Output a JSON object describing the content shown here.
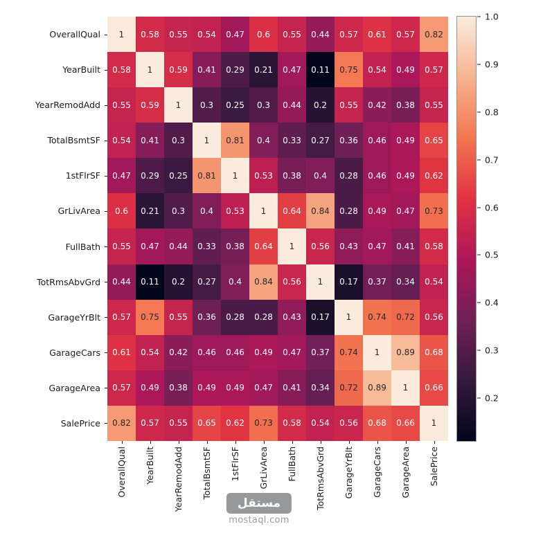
{
  "figure": {
    "background": "#ffffff"
  },
  "chart_data": {
    "type": "heatmap",
    "title": "",
    "xlabel": "",
    "ylabel": "",
    "grid": false,
    "legend_position": "right-colorbar",
    "categories": [
      "OverallQual",
      "YearBuilt",
      "YearRemodAdd",
      "TotalBsmtSF",
      "1stFlrSF",
      "GrLivArea",
      "FullBath",
      "TotRmsAbvGrd",
      "GarageYrBlt",
      "GarageCars",
      "GarageArea",
      "SalePrice"
    ],
    "matrix": [
      [
        "1",
        "0.58",
        "0.55",
        "0.54",
        "0.47",
        "0.6",
        "0.55",
        "0.44",
        "0.57",
        "0.61",
        "0.57",
        "0.82"
      ],
      [
        "0.58",
        "1",
        "0.59",
        "0.41",
        "0.29",
        "0.21",
        "0.47",
        "0.11",
        "0.75",
        "0.54",
        "0.49",
        "0.57"
      ],
      [
        "0.55",
        "0.59",
        "1",
        "0.3",
        "0.25",
        "0.3",
        "0.44",
        "0.2",
        "0.55",
        "0.42",
        "0.38",
        "0.55"
      ],
      [
        "0.54",
        "0.41",
        "0.3",
        "1",
        "0.81",
        "0.4",
        "0.33",
        "0.27",
        "0.36",
        "0.46",
        "0.49",
        "0.65"
      ],
      [
        "0.47",
        "0.29",
        "0.25",
        "0.81",
        "1",
        "0.53",
        "0.38",
        "0.4",
        "0.28",
        "0.46",
        "0.49",
        "0.62"
      ],
      [
        "0.6",
        "0.21",
        "0.3",
        "0.4",
        "0.53",
        "1",
        "0.64",
        "0.84",
        "0.28",
        "0.49",
        "0.47",
        "0.73"
      ],
      [
        "0.55",
        "0.47",
        "0.44",
        "0.33",
        "0.38",
        "0.64",
        "1",
        "0.56",
        "0.43",
        "0.47",
        "0.41",
        "0.58"
      ],
      [
        "0.44",
        "0.11",
        "0.2",
        "0.27",
        "0.4",
        "0.84",
        "0.56",
        "1",
        "0.17",
        "0.37",
        "0.34",
        "0.54"
      ],
      [
        "0.57",
        "0.75",
        "0.55",
        "0.36",
        "0.28",
        "0.28",
        "0.43",
        "0.17",
        "1",
        "0.74",
        "0.72",
        "0.56"
      ],
      [
        "0.61",
        "0.54",
        "0.42",
        "0.46",
        "0.46",
        "0.49",
        "0.47",
        "0.37",
        "0.74",
        "1",
        "0.89",
        "0.68"
      ],
      [
        "0.57",
        "0.49",
        "0.38",
        "0.49",
        "0.49",
        "0.47",
        "0.41",
        "0.34",
        "0.72",
        "0.89",
        "1",
        "0.66"
      ],
      [
        "0.82",
        "0.57",
        "0.55",
        "0.65",
        "0.62",
        "0.73",
        "0.58",
        "0.54",
        "0.56",
        "0.68",
        "0.66",
        "1"
      ]
    ],
    "vmin": 0.11,
    "vmax": 1.0,
    "colormap": {
      "name": "rocket",
      "stops": [
        {
          "t": 0.0,
          "color": "#03051a"
        },
        {
          "t": 0.143,
          "color": "#35193e"
        },
        {
          "t": 0.286,
          "color": "#701f57"
        },
        {
          "t": 0.429,
          "color": "#ad1759"
        },
        {
          "t": 0.571,
          "color": "#e13342"
        },
        {
          "t": 0.714,
          "color": "#f37651"
        },
        {
          "t": 0.857,
          "color": "#f6b48f"
        },
        {
          "t": 1.0,
          "color": "#faebdd"
        }
      ]
    },
    "colorbar_ticks": [
      "1.0",
      "0.9",
      "0.8",
      "0.7",
      "0.6",
      "0.5",
      "0.4",
      "0.3",
      "0.2"
    ],
    "annotation_colors": {
      "dark": "#262626",
      "light": "#ffffff"
    },
    "axis_text_color": "#1a1a1a"
  },
  "watermark": {
    "brand": "مستقل",
    "domain": "mostaql.com",
    "box_color": "#96989a",
    "domain_color": "#9b9b9b"
  }
}
